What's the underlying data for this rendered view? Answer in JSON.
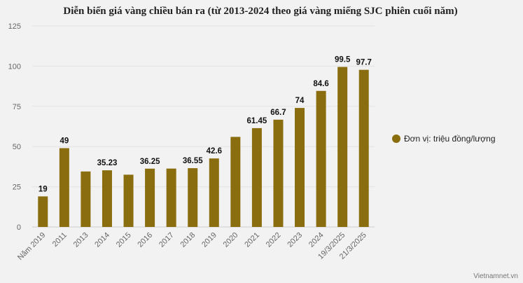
{
  "chart_data": {
    "type": "bar",
    "title": "Diễn biến giá vàng chiều bán ra (từ 2013-2024 theo giá vàng miếng SJC phiên cuối năm)",
    "categories": [
      "Năm 2019",
      "2011",
      "2013",
      "2014",
      "2015",
      "2016",
      "2017",
      "2018",
      "2019",
      "2020",
      "2021",
      "2022",
      "2023",
      "2024",
      "19/3/2025",
      "21/3/2025"
    ],
    "series": [
      {
        "name": "Đơn vị: triệu đồng/lượng",
        "values": [
          19,
          49,
          34.5,
          35.23,
          32.5,
          36.25,
          36.3,
          36.55,
          42.6,
          56,
          61.45,
          66.7,
          74,
          84.6,
          99.5,
          97.7
        ],
        "data_labels": [
          "19",
          "49",
          "",
          "35.23",
          "",
          "36.25",
          "",
          "36.55",
          "42.6",
          "",
          "61.45",
          "66.7",
          "74",
          "84.6",
          "99.5",
          "97.7"
        ]
      }
    ],
    "yticks": [
      0,
      25,
      50,
      75,
      100,
      125
    ],
    "ylim": [
      0,
      125
    ],
    "grid": true,
    "legend_position": "right",
    "bar_color": "#8a6d0e"
  },
  "watermark": "Vietnamnet.vn"
}
